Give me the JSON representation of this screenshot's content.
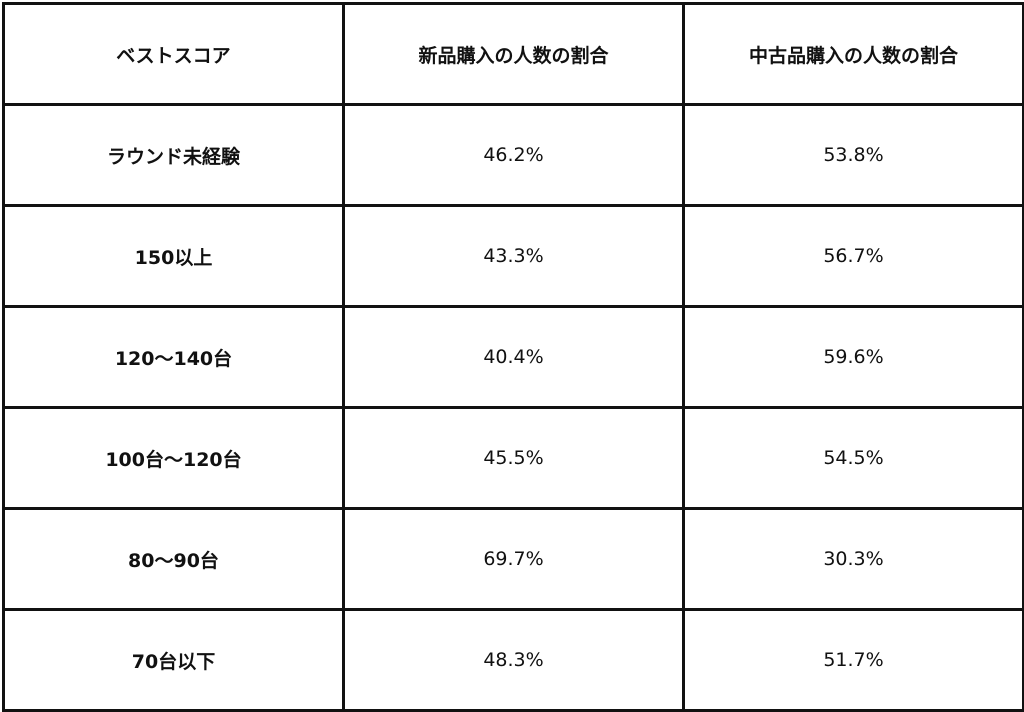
{
  "table": {
    "headers": [
      "ベストスコア",
      "新品購入の人数の割合",
      "中古品購入の人数の割合"
    ],
    "rows": [
      [
        "ラウンド未経験",
        "46.2%",
        "53.8%"
      ],
      [
        "150以上",
        "43.3%",
        "56.7%"
      ],
      [
        "120〜140台",
        "40.4%",
        "59.6%"
      ],
      [
        "100台〜120台",
        "45.5%",
        "54.5%"
      ],
      [
        "80〜90台",
        "69.7%",
        "30.3%"
      ],
      [
        "70台以下",
        "48.3%",
        "51.7%"
      ]
    ]
  }
}
